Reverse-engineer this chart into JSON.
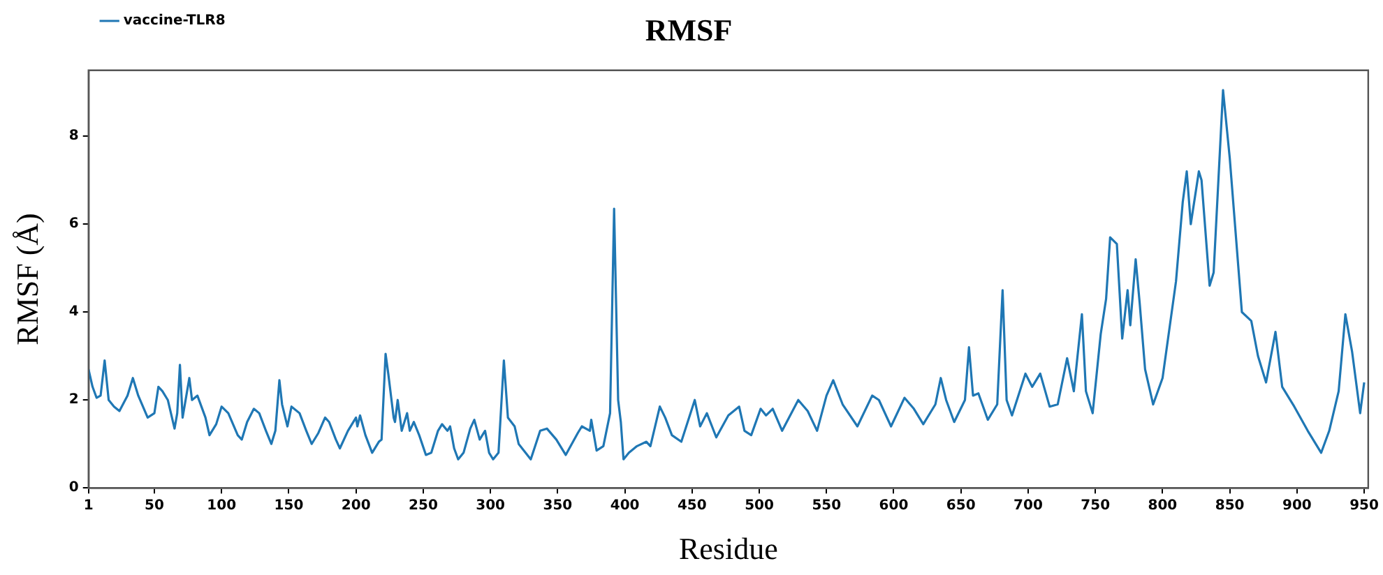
{
  "chart_data": {
    "type": "line",
    "title": "RMSF",
    "xlabel": "Residue",
    "ylabel": "RMSF (Å)",
    "xlim": [
      1,
      953
    ],
    "ylim": [
      0,
      9.5
    ],
    "xticks": [
      1,
      50,
      100,
      150,
      200,
      250,
      300,
      350,
      400,
      450,
      500,
      550,
      600,
      650,
      700,
      750,
      800,
      850,
      900,
      950
    ],
    "yticks": [
      0,
      2,
      4,
      6,
      8
    ],
    "grid": false,
    "legend": "top left",
    "marker": "none",
    "line_style": "solid",
    "series": [
      {
        "name": "vaccine-TLR8",
        "color": "#1f77b4",
        "x": [
          1,
          4,
          7,
          10,
          13,
          16,
          20,
          24,
          30,
          34,
          38,
          45,
          50,
          53,
          56,
          60,
          65,
          67,
          69,
          71,
          76,
          78,
          82,
          88,
          91,
          96,
          100,
          105,
          112,
          115,
          119,
          124,
          128,
          133,
          137,
          140,
          143,
          145,
          149,
          152,
          158,
          163,
          167,
          172,
          177,
          180,
          185,
          188,
          194,
          200,
          201,
          203,
          207,
          212,
          217,
          219,
          222,
          224,
          228,
          229,
          231,
          234,
          238,
          240,
          243,
          247,
          252,
          256,
          261,
          264,
          268,
          270,
          273,
          276,
          280,
          285,
          288,
          292,
          296,
          299,
          302,
          306,
          310,
          313,
          318,
          321,
          330,
          337,
          342,
          349,
          356,
          365,
          368,
          374,
          375,
          379,
          384,
          389,
          392,
          395,
          397,
          399,
          403,
          409,
          416,
          419,
          426,
          430,
          435,
          442,
          452,
          456,
          461,
          468,
          477,
          485,
          489,
          494,
          501,
          505,
          510,
          517,
          529,
          536,
          543,
          550,
          555,
          562,
          573,
          584,
          589,
          598,
          608,
          615,
          622,
          631,
          635,
          639,
          645,
          653,
          656,
          659,
          663,
          670,
          677,
          681,
          684,
          688,
          698,
          703,
          709,
          716,
          722,
          729,
          734,
          740,
          743,
          748,
          754,
          758,
          761,
          766,
          770,
          774,
          776,
          780,
          783,
          787,
          793,
          800,
          810,
          815,
          818,
          821,
          827,
          829,
          835,
          838,
          845,
          850,
          859,
          866,
          871,
          877,
          884,
          889,
          898,
          908,
          918,
          924,
          931,
          936,
          941,
          947,
          950
        ],
        "values": [
          2.7,
          2.3,
          2.05,
          2.1,
          2.9,
          2.0,
          1.85,
          1.75,
          2.1,
          2.5,
          2.1,
          1.6,
          1.7,
          2.3,
          2.2,
          2.0,
          1.35,
          1.7,
          2.8,
          1.6,
          2.5,
          2.0,
          2.1,
          1.6,
          1.2,
          1.45,
          1.85,
          1.7,
          1.2,
          1.1,
          1.5,
          1.8,
          1.7,
          1.3,
          1.0,
          1.3,
          2.45,
          1.9,
          1.4,
          1.85,
          1.7,
          1.3,
          1.0,
          1.25,
          1.6,
          1.5,
          1.1,
          0.9,
          1.3,
          1.6,
          1.4,
          1.65,
          1.2,
          0.8,
          1.05,
          1.1,
          3.05,
          2.6,
          1.6,
          1.5,
          2.0,
          1.3,
          1.7,
          1.3,
          1.5,
          1.2,
          0.75,
          0.8,
          1.3,
          1.45,
          1.3,
          1.4,
          0.9,
          0.65,
          0.8,
          1.35,
          1.55,
          1.1,
          1.3,
          0.8,
          0.65,
          0.8,
          2.9,
          1.6,
          1.4,
          1.0,
          0.65,
          1.3,
          1.35,
          1.1,
          0.75,
          1.25,
          1.4,
          1.3,
          1.55,
          0.85,
          0.95,
          1.7,
          6.35,
          2.0,
          1.5,
          0.65,
          0.8,
          0.95,
          1.05,
          0.95,
          1.85,
          1.6,
          1.2,
          1.05,
          2.0,
          1.4,
          1.7,
          1.15,
          1.65,
          1.85,
          1.3,
          1.2,
          1.8,
          1.65,
          1.8,
          1.3,
          2.0,
          1.75,
          1.3,
          2.1,
          2.45,
          1.9,
          1.4,
          2.1,
          2.0,
          1.4,
          2.05,
          1.8,
          1.45,
          1.9,
          2.5,
          2.0,
          1.5,
          2.0,
          3.2,
          2.1,
          2.15,
          1.55,
          1.9,
          4.5,
          2.0,
          1.65,
          2.6,
          2.3,
          2.6,
          1.85,
          1.9,
          2.95,
          2.2,
          3.95,
          2.2,
          1.7,
          3.5,
          4.3,
          5.7,
          5.55,
          3.4,
          4.5,
          3.7,
          5.2,
          4.2,
          2.7,
          1.9,
          2.5,
          4.7,
          6.5,
          7.2,
          6.0,
          7.2,
          7.0,
          4.6,
          4.9,
          9.05,
          7.5,
          4.0,
          3.8,
          3.0,
          2.4,
          3.55,
          2.3,
          1.85,
          1.3,
          0.8,
          1.3,
          2.2,
          3.95,
          3.1,
          1.7,
          2.4
        ]
      }
    ]
  }
}
